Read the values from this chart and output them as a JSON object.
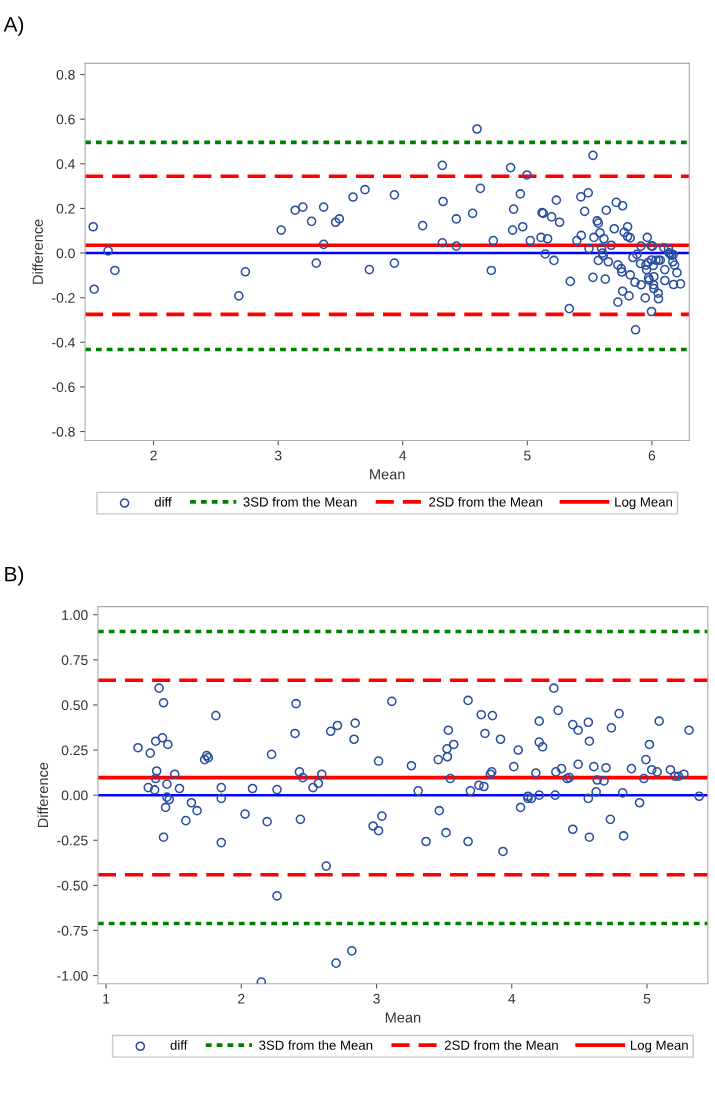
{
  "chart_data": [
    {
      "type": "scatter",
      "xlabel": "Mean",
      "ylabel": "Difference",
      "annotations": [
        "A)"
      ],
      "marker": "circle",
      "legend": "bottom",
      "grid": false,
      "xlim": [
        1.45,
        6.3
      ],
      "ylim": [
        -0.84,
        0.85
      ],
      "xticks": [
        2,
        3,
        4,
        5,
        6
      ],
      "yticks": [
        {
          "value": -0.8,
          "label": "-0.8"
        },
        {
          "value": -0.6,
          "label": "-0.6"
        },
        {
          "value": -0.4,
          "label": "-0.4"
        },
        {
          "value": -0.2,
          "label": "-0.2"
        },
        {
          "value": 0,
          "label": "0.0"
        },
        {
          "value": 0.2,
          "label": "0.2"
        },
        {
          "value": 0.4,
          "label": "0.4"
        },
        {
          "value": 0.6,
          "label": "0.6"
        },
        {
          "value": 0.8,
          "label": "0.8"
        }
      ],
      "series": [
        {
          "name": "diff",
          "color": "#2b4fa0",
          "x": [
            1.515,
            1.523,
            1.635,
            1.689,
            2.684,
            2.737,
            3.024,
            3.137,
            3.198,
            3.268,
            3.306,
            3.365,
            3.365,
            3.461,
            3.491,
            3.601,
            3.697,
            3.732,
            3.933,
            3.933,
            4.16,
            4.318,
            4.324,
            4.318,
            4.43,
            4.43,
            4.561,
            4.596,
            4.623,
            4.711,
            4.727,
            4.866,
            4.89,
            4.882,
            4.944,
            4.963,
            4.997,
            5.024,
            5.11,
            5.118,
            5.128,
            5.163,
            5.144,
            5.195,
            5.214,
            5.233,
            5.259,
            5.345,
            5.337,
            5.398,
            5.43,
            5.433,
            5.46,
            5.489,
            5.495,
            5.527,
            5.527,
            5.535,
            5.561,
            5.57,
            5.57,
            5.583,
            5.596,
            5.604,
            5.615,
            5.61,
            5.626,
            5.634,
            5.65,
            5.674,
            5.698,
            5.714,
            5.727,
            5.727,
            5.754,
            5.759,
            5.765,
            5.765,
            5.778,
            5.805,
            5.805,
            5.816,
            5.826,
            5.826,
            5.848,
            5.864,
            5.869,
            5.88,
            5.909,
            5.912,
            5.914,
            5.947,
            5.952,
            5.957,
            5.963,
            5.968,
            5.973,
            5.979,
            5.995,
            5.997,
            5.997,
            6.005,
            6.011,
            6.016,
            6.013,
            6.016,
            6.032,
            6.053,
            6.051,
            6.053,
            6.067,
            6.096,
            6.104,
            6.104,
            6.134,
            6.139,
            6.147,
            6.158,
            6.171,
            6.168,
            6.174,
            6.182,
            6.201,
            6.23
          ],
          "values": [
            0.118,
            -0.162,
            0.01,
            -0.078,
            -0.192,
            -0.084,
            0.103,
            0.192,
            0.206,
            0.142,
            -0.045,
            0.206,
            0.039,
            0.138,
            0.153,
            0.251,
            0.284,
            -0.074,
            0.261,
            -0.045,
            0.123,
            0.393,
            0.231,
            0.046,
            0.153,
            0.031,
            0.178,
            0.556,
            0.29,
            -0.078,
            0.056,
            0.383,
            0.197,
            0.103,
            0.265,
            0.118,
            0.35,
            0.056,
            0.07,
            0.181,
            0.178,
            0.064,
            -0.004,
            0.162,
            -0.033,
            0.237,
            0.138,
            -0.127,
            -0.249,
            0.056,
            0.252,
            0.079,
            0.187,
            0.27,
            0.02,
            0.438,
            -0.109,
            0.07,
            0.144,
            0.134,
            -0.033,
            0.091,
            0.022,
            0.0,
            0.064,
            -0.011,
            -0.117,
            0.192,
            -0.039,
            0.035,
            0.109,
            0.227,
            -0.22,
            -0.053,
            -0.07,
            -0.085,
            0.212,
            -0.171,
            0.093,
            0.118,
            0.074,
            -0.192,
            0.068,
            -0.098,
            -0.02,
            -0.131,
            -0.344,
            -0.006,
            -0.047,
            0.031,
            -0.142,
            -0.201,
            -0.054,
            -0.074,
            0.07,
            -0.043,
            -0.111,
            -0.121,
            0.032,
            -0.262,
            -0.031,
            0.031,
            -0.056,
            -0.106,
            -0.142,
            -0.159,
            -0.032,
            -0.032,
            -0.18,
            -0.205,
            -0.032,
            0.024,
            -0.074,
            -0.123,
            0.018,
            0.001,
            -0.004,
            -0.01,
            -0.007,
            -0.039,
            -0.141,
            -0.054,
            -0.088,
            -0.138
          ]
        }
      ],
      "ref_lines": [
        {
          "axis": "y",
          "value": 0.496,
          "label": "3SD from the Mean",
          "color": "#008000",
          "line_style": "dotted"
        },
        {
          "axis": "y",
          "value": -0.432,
          "color": "#008000",
          "line_style": "dotted"
        },
        {
          "axis": "y",
          "value": 0.344,
          "label": "2SD from the Mean",
          "color": "#ff0000",
          "line_style": "dashed"
        },
        {
          "axis": "y",
          "value": -0.275,
          "color": "#ff0000",
          "line_style": "dashed"
        },
        {
          "axis": "y",
          "value": 0.035,
          "label": "Log Mean",
          "color": "#ff0000",
          "line_style": "solid"
        },
        {
          "axis": "y",
          "value": 0,
          "color": "#0000ff",
          "line_style": "solid"
        }
      ]
    },
    {
      "type": "scatter",
      "xlabel": "Mean",
      "ylabel": "Difference",
      "annotations": [
        "B)"
      ],
      "marker": "circle",
      "legend": "bottom",
      "grid": false,
      "xlim": [
        0.94,
        5.45
      ],
      "ylim": [
        -1.045,
        1.045
      ],
      "xticks": [
        1,
        2,
        3,
        4,
        5
      ],
      "yticks": [
        {
          "value": -1,
          "label": "-1.00"
        },
        {
          "value": -0.75,
          "label": "-0.75"
        },
        {
          "value": -0.5,
          "label": "-0.50"
        },
        {
          "value": -0.25,
          "label": "-0.25"
        },
        {
          "value": 0,
          "label": "0.00"
        },
        {
          "value": 0.25,
          "label": "0.25"
        },
        {
          "value": 0.5,
          "label": "0.50"
        },
        {
          "value": 0.75,
          "label": "0.75"
        },
        {
          "value": 1,
          "label": "1.00"
        }
      ],
      "series": [
        {
          "name": "diff",
          "color": "#2b4fa0",
          "x": [
            1.236,
            1.327,
            1.312,
            1.359,
            1.367,
            1.374,
            1.367,
            1.392,
            1.417,
            1.425,
            1.425,
            1.45,
            1.45,
            1.44,
            1.457,
            1.467,
            1.508,
            1.543,
            1.59,
            1.631,
            1.673,
            1.729,
            1.744,
            1.756,
            1.812,
            1.852,
            1.852,
            1.852,
            2.028,
            2.083,
            2.148,
            2.191,
            2.224,
            2.264,
            2.264,
            2.397,
            2.405,
            2.43,
            2.437,
            2.455,
            2.53,
            2.57,
            2.595,
            2.628,
            2.661,
            2.711,
            2.701,
            2.834,
            2.842,
            2.817,
            2.975,
            3.015,
            3.015,
            3.04,
            3.113,
            3.258,
            3.308,
            3.366,
            3.456,
            3.464,
            3.521,
            3.524,
            3.531,
            3.514,
            3.546,
            3.571,
            3.677,
            3.677,
            3.694,
            3.757,
            3.774,
            3.794,
            3.802,
            3.842,
            3.852,
            3.857,
            3.917,
            3.935,
            4.015,
            4.048,
            4.065,
            4.12,
            4.12,
            4.145,
            4.178,
            4.203,
            4.203,
            4.228,
            4.203,
            4.311,
            4.343,
            4.321,
            4.326,
            4.368,
            4.409,
            4.426,
            4.451,
            4.451,
            4.491,
            4.491,
            4.566,
            4.574,
            4.566,
            4.574,
            4.607,
            4.624,
            4.632,
            4.682,
            4.697,
            4.729,
            4.737,
            4.794,
            4.82,
            4.827,
            4.885,
            4.945,
            4.977,
            4.992,
            5.018,
            5.035,
            5.075,
            5.09,
            5.173,
            5.206,
            5.233,
            5.273,
            5.311,
            5.386
          ],
          "values": [
            0.263,
            0.233,
            0.042,
            0.029,
            0.299,
            0.134,
            0.092,
            0.593,
            0.318,
            0.512,
            -0.233,
            0.061,
            -0.011,
            -0.068,
            0.281,
            -0.024,
            0.116,
            0.037,
            -0.141,
            -0.042,
            -0.086,
            0.197,
            0.219,
            0.208,
            0.441,
            0.042,
            -0.018,
            -0.263,
            -0.105,
            0.037,
            -1.036,
            -0.147,
            0.226,
            0.031,
            -0.558,
            0.342,
            0.507,
            0.129,
            -0.134,
            0.097,
            0.042,
            0.066,
            0.116,
            -0.393,
            0.354,
            0.386,
            -0.931,
            0.31,
            0.399,
            -0.863,
            -0.171,
            0.189,
            -0.197,
            -0.116,
            0.52,
            0.163,
            0.024,
            -0.257,
            0.197,
            -0.086,
            0.257,
            0.213,
            0.36,
            -0.208,
            0.092,
            0.281,
            0.525,
            -0.257,
            0.024,
            0.055,
            0.446,
            0.048,
            0.342,
            0.116,
            0.129,
            0.441,
            0.31,
            -0.312,
            0.158,
            0.25,
            -0.068,
            -0.006,
            -0.018,
            -0.018,
            0.123,
            0.41,
            0.294,
            0.268,
            0.0,
            0.593,
            0.47,
            0.0,
            0.129,
            0.147,
            0.092,
            0.097,
            0.391,
            -0.189,
            0.36,
            0.171,
            0.404,
            0.299,
            -0.018,
            -0.233,
            0.158,
            0.018,
            0.084,
            0.079,
            0.152,
            -0.134,
            0.373,
            0.452,
            0.013,
            -0.226,
            0.147,
            -0.042,
            0.092,
            0.197,
            0.281,
            0.141,
            0.129,
            0.41,
            0.141,
            0.105,
            0.105,
            0.116,
            0.36,
            -0.006
          ]
        }
      ],
      "ref_lines": [
        {
          "axis": "y",
          "value": 0.907,
          "label": "3SD from the Mean",
          "color": "#008000",
          "line_style": "dotted"
        },
        {
          "axis": "y",
          "value": -0.711,
          "color": "#008000",
          "line_style": "dotted"
        },
        {
          "axis": "y",
          "value": 0.637,
          "label": "2SD from the Mean",
          "color": "#ff0000",
          "line_style": "dashed"
        },
        {
          "axis": "y",
          "value": -0.441,
          "color": "#ff0000",
          "line_style": "dashed"
        },
        {
          "axis": "y",
          "value": 0.097,
          "label": "Log Mean",
          "color": "#ff0000",
          "line_style": "solid"
        },
        {
          "axis": "y",
          "value": 0,
          "color": "#0000ff",
          "line_style": "solid"
        }
      ]
    }
  ]
}
